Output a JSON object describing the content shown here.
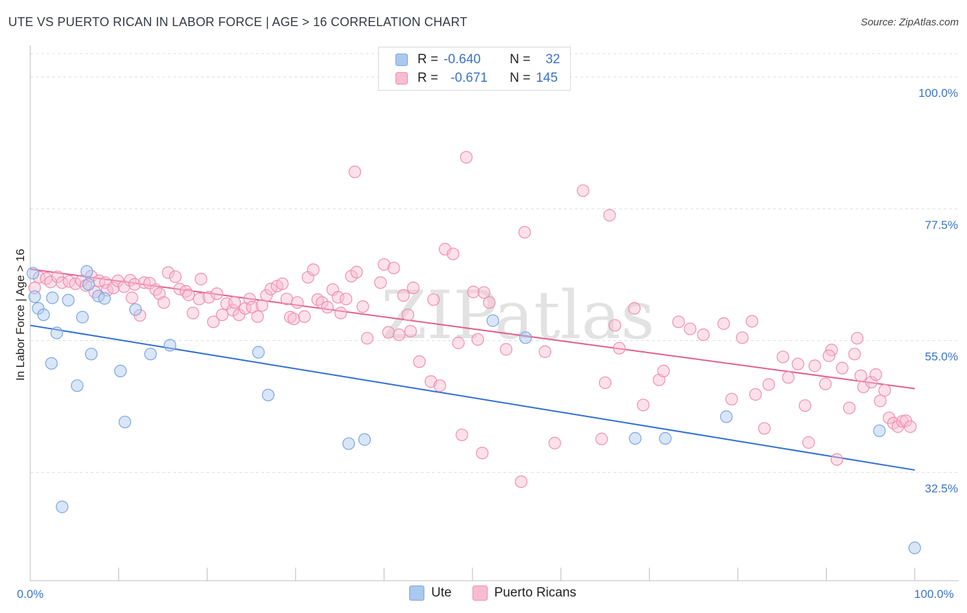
{
  "title": "UTE VS PUERTO RICAN IN LABOR FORCE | AGE > 16 CORRELATION CHART",
  "source": "Source: ZipAtlas.com",
  "watermark": "ZIPatlas",
  "legend": {
    "rows": [
      {
        "r_label": "R =",
        "r_value": "-0.640",
        "n_label": "N =",
        "n_value": "32",
        "color": "#aac8f0",
        "stroke": "#7aa6e0"
      },
      {
        "r_label": "R =",
        "r_value": "-0.671",
        "n_label": "N =",
        "n_value": "145",
        "color": "#f8bcd0",
        "stroke": "#ee8fb0"
      }
    ]
  },
  "bottom_legend": [
    {
      "label": "Ute",
      "color": "#aac8f0",
      "stroke": "#7aa6e0"
    },
    {
      "label": "Puerto Ricans",
      "color": "#f8bcd0",
      "stroke": "#ee8fb0"
    }
  ],
  "chart_data": {
    "type": "scatter",
    "xlabel": "",
    "ylabel": "In Labor Force | Age > 16",
    "xlim": [
      0,
      100
    ],
    "ylim": [
      14.0,
      104.0
    ],
    "x_tick_labels": [
      "0.0%",
      "100.0%"
    ],
    "y_ticks": [
      32.5,
      55.0,
      77.5,
      100.0
    ],
    "y_tick_labels": [
      "32.5%",
      "55.0%",
      "77.5%",
      "100.0%"
    ],
    "series": [
      {
        "name": "Ute",
        "color": "#aac8f0",
        "stroke": "#7aa6e0",
        "line_color": "#2f6fd0",
        "trend": {
          "x": [
            0,
            100
          ],
          "y": [
            57.6,
            32.9
          ]
        },
        "points": [
          [
            0.3,
            66.5
          ],
          [
            0.9,
            60.5
          ],
          [
            1.5,
            59.4
          ],
          [
            2.4,
            51.1
          ],
          [
            2.5,
            62.3
          ],
          [
            3.0,
            56.3
          ],
          [
            4.3,
            61.9
          ],
          [
            5.3,
            47.3
          ],
          [
            5.9,
            59.0
          ],
          [
            6.6,
            64.6
          ],
          [
            6.4,
            66.8
          ],
          [
            6.9,
            52.7
          ],
          [
            7.7,
            62.6
          ],
          [
            8.4,
            62.2
          ],
          [
            10.2,
            49.8
          ],
          [
            10.7,
            41.1
          ],
          [
            11.9,
            60.3
          ],
          [
            13.6,
            52.7
          ],
          [
            15.8,
            54.2
          ],
          [
            25.8,
            53.0
          ],
          [
            26.9,
            45.7
          ],
          [
            36.0,
            37.4
          ],
          [
            37.8,
            38.1
          ],
          [
            52.3,
            58.4
          ],
          [
            56.0,
            55.5
          ],
          [
            68.4,
            38.3
          ],
          [
            71.8,
            38.3
          ],
          [
            78.7,
            42.0
          ],
          [
            96.0,
            39.6
          ],
          [
            100.0,
            19.6
          ],
          [
            3.6,
            26.6
          ],
          [
            0.5,
            62.5
          ]
        ]
      },
      {
        "name": "Puerto Ricans",
        "color": "#f8bcd0",
        "stroke": "#ee8fb0",
        "line_color": "#e0608c",
        "trend": {
          "x": [
            0,
            100
          ],
          "y": [
            67.2,
            46.8
          ]
        },
        "points": [
          [
            0.5,
            64.0
          ],
          [
            1.0,
            65.8
          ],
          [
            1.8,
            65.6
          ],
          [
            2.3,
            65.0
          ],
          [
            3.1,
            65.9
          ],
          [
            3.6,
            64.9
          ],
          [
            4.4,
            65.1
          ],
          [
            5.1,
            64.7
          ],
          [
            5.8,
            65.2
          ],
          [
            6.3,
            64.4
          ],
          [
            6.9,
            66.0
          ],
          [
            7.3,
            63.3
          ],
          [
            7.8,
            65.2
          ],
          [
            8.5,
            64.9
          ],
          [
            8.7,
            63.6
          ],
          [
            9.4,
            64.0
          ],
          [
            9.9,
            65.2
          ],
          [
            10.6,
            64.2
          ],
          [
            11.3,
            65.3
          ],
          [
            11.8,
            64.6
          ],
          [
            11.5,
            62.3
          ],
          [
            12.4,
            59.3
          ],
          [
            12.9,
            64.9
          ],
          [
            13.5,
            64.8
          ],
          [
            14.2,
            63.7
          ],
          [
            14.6,
            63.0
          ],
          [
            15.1,
            61.5
          ],
          [
            15.6,
            66.6
          ],
          [
            16.4,
            65.9
          ],
          [
            16.9,
            63.8
          ],
          [
            17.6,
            63.4
          ],
          [
            17.9,
            62.8
          ],
          [
            18.4,
            59.7
          ],
          [
            19.1,
            62.1
          ],
          [
            19.3,
            65.5
          ],
          [
            20.2,
            62.4
          ],
          [
            20.7,
            58.2
          ],
          [
            21.1,
            63.0
          ],
          [
            21.7,
            59.4
          ],
          [
            22.2,
            61.3
          ],
          [
            22.9,
            60.2
          ],
          [
            23.1,
            61.5
          ],
          [
            23.6,
            59.4
          ],
          [
            24.3,
            60.5
          ],
          [
            24.8,
            62.1
          ],
          [
            25.1,
            60.7
          ],
          [
            25.7,
            59.1
          ],
          [
            26.2,
            61.0
          ],
          [
            26.7,
            62.7
          ],
          [
            27.2,
            63.8
          ],
          [
            27.9,
            64.3
          ],
          [
            28.5,
            64.7
          ],
          [
            29.0,
            62.1
          ],
          [
            29.4,
            59.0
          ],
          [
            29.8,
            58.7
          ],
          [
            30.2,
            61.5
          ],
          [
            31.0,
            59.1
          ],
          [
            31.4,
            65.8
          ],
          [
            32.0,
            67.1
          ],
          [
            32.5,
            62.0
          ],
          [
            33.0,
            61.5
          ],
          [
            33.6,
            60.7
          ],
          [
            34.2,
            63.7
          ],
          [
            34.8,
            62.4
          ],
          [
            35.1,
            59.7
          ],
          [
            35.7,
            62.1
          ],
          [
            36.3,
            66.0
          ],
          [
            36.7,
            83.8
          ],
          [
            36.9,
            66.7
          ],
          [
            37.6,
            60.8
          ],
          [
            38.1,
            55.4
          ],
          [
            39.6,
            64.9
          ],
          [
            40.0,
            68.0
          ],
          [
            40.5,
            56.4
          ],
          [
            41.1,
            67.4
          ],
          [
            41.7,
            56.0
          ],
          [
            42.2,
            62.7
          ],
          [
            42.7,
            59.4
          ],
          [
            43.0,
            56.6
          ],
          [
            43.3,
            64.0
          ],
          [
            44.0,
            51.4
          ],
          [
            45.3,
            48.0
          ],
          [
            45.6,
            62.0
          ],
          [
            46.3,
            47.3
          ],
          [
            46.9,
            70.6
          ],
          [
            47.8,
            69.8
          ],
          [
            48.4,
            54.6
          ],
          [
            48.8,
            38.9
          ],
          [
            49.3,
            86.3
          ],
          [
            50.1,
            63.3
          ],
          [
            50.6,
            55.2
          ],
          [
            51.1,
            35.8
          ],
          [
            51.3,
            63.2
          ],
          [
            51.9,
            61.5
          ],
          [
            55.5,
            30.9
          ],
          [
            55.9,
            73.5
          ],
          [
            58.2,
            53.1
          ],
          [
            59.3,
            37.5
          ],
          [
            62.5,
            80.6
          ],
          [
            65.0,
            47.8
          ],
          [
            65.5,
            76.4
          ],
          [
            66.1,
            57.6
          ],
          [
            66.6,
            53.7
          ],
          [
            68.3,
            60.5
          ],
          [
            69.3,
            44.0
          ],
          [
            71.1,
            48.3
          ],
          [
            71.6,
            49.8
          ],
          [
            73.3,
            58.2
          ],
          [
            74.6,
            57.0
          ],
          [
            76.1,
            56.0
          ],
          [
            78.4,
            57.9
          ],
          [
            80.5,
            55.5
          ],
          [
            81.6,
            58.3
          ],
          [
            82.0,
            45.8
          ],
          [
            83.0,
            40.0
          ],
          [
            83.5,
            47.5
          ],
          [
            85.1,
            52.2
          ],
          [
            85.7,
            48.7
          ],
          [
            86.8,
            51.0
          ],
          [
            87.6,
            43.9
          ],
          [
            88.0,
            37.6
          ],
          [
            88.7,
            50.7
          ],
          [
            89.9,
            47.6
          ],
          [
            90.6,
            53.4
          ],
          [
            91.2,
            34.7
          ],
          [
            91.8,
            50.3
          ],
          [
            92.6,
            43.5
          ],
          [
            93.2,
            52.7
          ],
          [
            93.5,
            55.4
          ],
          [
            94.2,
            47.1
          ],
          [
            95.1,
            47.9
          ],
          [
            95.6,
            49.2
          ],
          [
            96.1,
            44.7
          ],
          [
            96.6,
            46.5
          ],
          [
            97.1,
            41.8
          ],
          [
            97.6,
            40.9
          ],
          [
            98.1,
            40.3
          ],
          [
            98.6,
            41.2
          ],
          [
            99.0,
            41.3
          ],
          [
            99.5,
            40.3
          ],
          [
            79.3,
            45.0
          ],
          [
            53.8,
            53.5
          ],
          [
            64.6,
            38.2
          ],
          [
            90.3,
            52.4
          ],
          [
            93.9,
            49.0
          ]
        ]
      }
    ]
  }
}
